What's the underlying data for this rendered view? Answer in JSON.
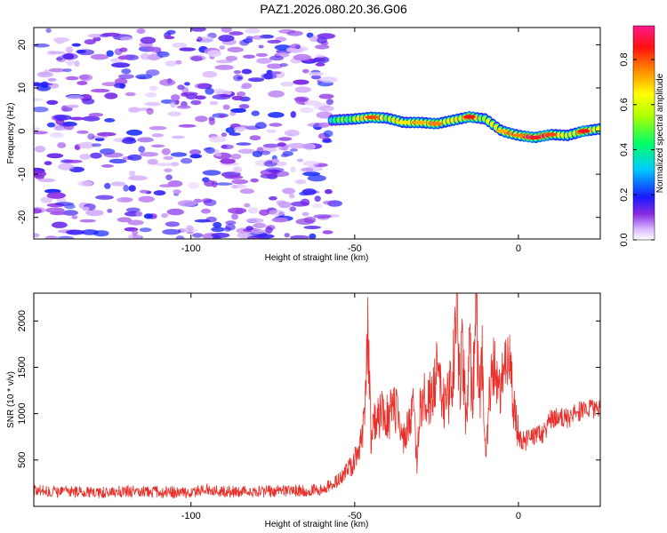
{
  "figure": {
    "title": "PAZ1.2026.080.20.36.G06"
  },
  "chart_data": [
    {
      "type": "heatmap",
      "title": "",
      "xlabel": "Height of straight line (km)",
      "ylabel": "Frequency (Hz)",
      "xlim": [
        -148,
        25
      ],
      "ylim": [
        -25,
        24
      ],
      "xticks": [
        -100,
        -50,
        0
      ],
      "yticks": [
        -20,
        -10,
        0,
        10,
        20
      ],
      "colorbar": {
        "label": "Normalized spectral amplitude",
        "range": [
          0.0,
          0.95
        ],
        "ticks": [
          0.0,
          0.2,
          0.4,
          0.6,
          0.8
        ]
      },
      "noise_region": {
        "x_range": [
          -148,
          -56
        ],
        "freq_range": [
          -25,
          24
        ],
        "amplitude_range": [
          0.05,
          0.35
        ]
      },
      "signal_ridge": {
        "x": [
          -57,
          -50,
          -45,
          -40,
          -35,
          -30,
          -25,
          -20,
          -15,
          -10,
          -5,
          0,
          5,
          10,
          15,
          20,
          25
        ],
        "frequency": [
          2.5,
          2.8,
          3.2,
          3.0,
          2.0,
          2.0,
          1.7,
          2.5,
          3.3,
          2.8,
          0.0,
          -1.0,
          -1.5,
          -0.8,
          -1.0,
          0.0,
          0.5
        ],
        "peak_amplitude": [
          0.4,
          0.55,
          0.8,
          0.6,
          0.65,
          0.7,
          0.75,
          0.6,
          0.85,
          0.55,
          0.7,
          0.75,
          0.9,
          0.8,
          0.55,
          0.85,
          0.6
        ]
      }
    },
    {
      "type": "line",
      "title": "",
      "xlabel": "Height of straight line (km)",
      "ylabel": "SNR (10 * v/v)",
      "xlim": [
        -148,
        25
      ],
      "ylim": [
        0,
        2300
      ],
      "xticks": [
        -100,
        -50,
        0
      ],
      "yticks": [
        500,
        1000,
        1500,
        2000
      ],
      "series": [
        {
          "name": "SNR",
          "color": "#e8302a",
          "x": [
            -148,
            -140,
            -130,
            -120,
            -110,
            -100,
            -95,
            -90,
            -80,
            -70,
            -60,
            -55,
            -53,
            -50,
            -47,
            -46,
            -45,
            -44,
            -42,
            -40,
            -38,
            -35,
            -32,
            -31,
            -30,
            -28,
            -25,
            -22,
            -20,
            -19,
            -18,
            -17,
            -16,
            -15,
            -14,
            -13,
            -12,
            -11,
            -10,
            -8,
            -6,
            -5,
            -3,
            -1,
            0,
            2,
            5,
            8,
            10,
            15,
            20,
            25
          ],
          "y": [
            170,
            160,
            150,
            160,
            155,
            150,
            190,
            160,
            160,
            165,
            180,
            280,
            350,
            480,
            900,
            1900,
            700,
            900,
            1000,
            950,
            1100,
            700,
            1050,
            450,
            1200,
            1100,
            1400,
            1050,
            1500,
            2250,
            1300,
            1700,
            900,
            1850,
            1050,
            2300,
            1100,
            1600,
            550,
            1600,
            1200,
            1300,
            1650,
            1000,
            750,
            700,
            750,
            800,
            950,
            950,
            1050,
            1050
          ]
        }
      ]
    }
  ]
}
